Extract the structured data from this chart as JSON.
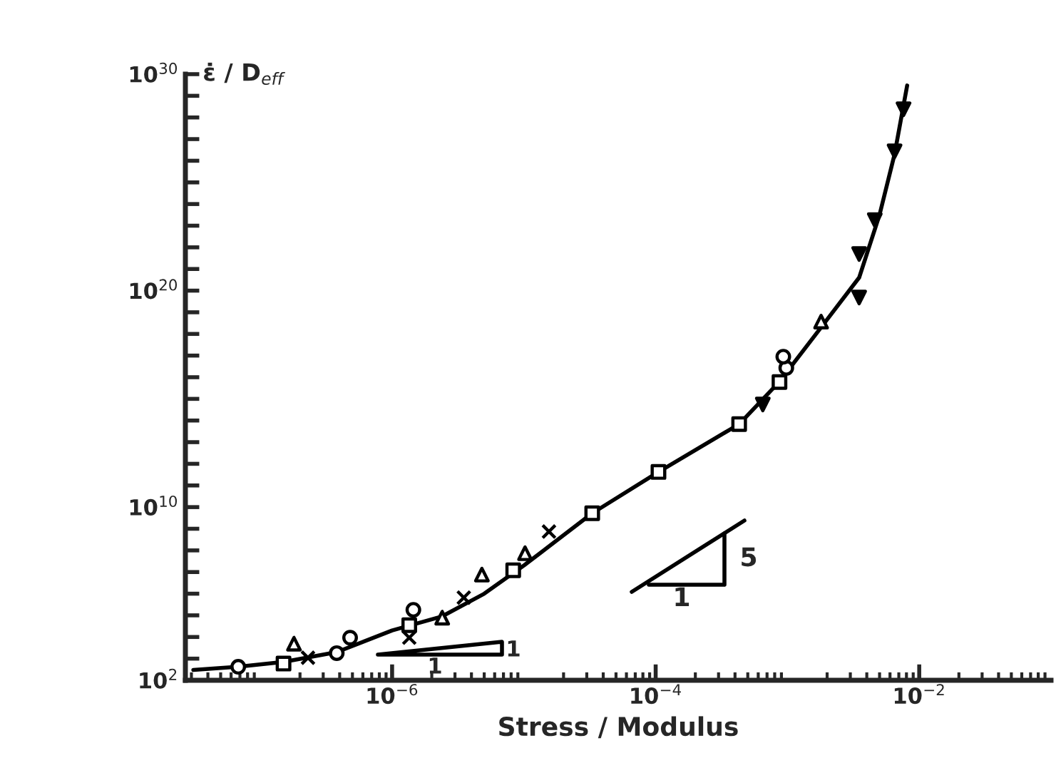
{
  "chart_data": {
    "type": "scatter",
    "xlabel": "Stress / Modulus",
    "ylabel": "ε̇ / D$_{eff}$",
    "log": "xy",
    "grid": false,
    "legend": false,
    "xlim": [
      2.7e-08,
      0.1
    ],
    "ylim": [
      100.0,
      1e+30
    ],
    "xticks": [
      {
        "value": 1e-06,
        "label": "10$^{−6}$"
      },
      {
        "value": 0.0001,
        "label": "10$^{−4}$"
      },
      {
        "value": 0.01,
        "label": "10$^{−2}$"
      }
    ],
    "yticks": [
      {
        "value": 100.0,
        "label": "10$^{2}$"
      },
      {
        "value": 1000.0,
        "label": null
      },
      {
        "value": 10000.0,
        "label": null
      },
      {
        "value": 100000.0,
        "label": null
      },
      {
        "value": 1000000.0,
        "label": null
      },
      {
        "value": 10000000.0,
        "label": null
      },
      {
        "value": 100000000.0,
        "label": null
      },
      {
        "value": 1000000000.0,
        "label": null
      },
      {
        "value": 10000000000.0,
        "label": "10$^{10}$"
      },
      {
        "value": 100000000000.0,
        "label": null
      },
      {
        "value": 1000000000000.0,
        "label": null
      },
      {
        "value": 10000000000000.0,
        "label": null
      },
      {
        "value": 100000000000000.0,
        "label": null
      },
      {
        "value": 1000000000000000.0,
        "label": null
      },
      {
        "value": 1e+16,
        "label": null
      },
      {
        "value": 1e+17,
        "label": null
      },
      {
        "value": 1e+18,
        "label": null
      },
      {
        "value": 1e+19,
        "label": null
      },
      {
        "value": 1e+20,
        "label": "10$^{20}$"
      },
      {
        "value": 1e+21,
        "label": null
      },
      {
        "value": 1e+22,
        "label": null
      },
      {
        "value": 1e+23,
        "label": null
      },
      {
        "value": 1e+24,
        "label": null
      },
      {
        "value": 1e+25,
        "label": null
      },
      {
        "value": 1e+26,
        "label": null
      },
      {
        "value": 1e+27,
        "label": null
      },
      {
        "value": 1e+28,
        "label": null
      },
      {
        "value": 1e+29,
        "label": null
      },
      {
        "value": 1e+30,
        "label": "10$^{30}$"
      }
    ],
    "annotations": [
      "1",
      "1",
      "1",
      "5"
    ],
    "series": [
      {
        "type": "line",
        "color": "#000000",
        "marker": "none",
        "line_style": "solid",
        "x": [
          3.1e-08,
          6.8e-08,
          1.5e-07,
          3.8e-07,
          1e-06,
          2.4e-06,
          5e-06,
          1e-05,
          3.3e-05,
          0.000105,
          0.00043,
          0.00087,
          0.0018,
          0.0035,
          0.005,
          0.0065,
          0.0081
        ],
        "values": [
          300.0,
          420.0,
          700.0,
          2000.0,
          20000.0,
          90000.0,
          1000000.0,
          20000000.0,
          5200000000.0,
          420000000000.0,
          68000000000000.0,
          6300000000000000.0,
          2e+18,
          4e+20,
          3.2e+23,
          2e+26,
          3e+29
        ]
      },
      {
        "color": "#000000",
        "marker": "square",
        "x": [
          1.5e-07,
          1.35e-06,
          8.3e-06,
          3.3e-05,
          0.000105,
          0.00043,
          0.00087
        ],
        "values": [
          590.0,
          35000.0,
          12000000.0,
          5200000000.0,
          420000000000.0,
          68000000000000.0,
          6000000000000000.0
        ]
      },
      {
        "color": "#000000",
        "marker": "circle",
        "x": [
          6.8e-08,
          3.8e-07,
          4.8e-07,
          1.45e-06,
          0.00098,
          0.00093
        ],
        "values": [
          420.0,
          1800.0,
          9300.0,
          180000.0,
          2.7e+16,
          8.9e+16
        ]
      },
      {
        "color": "#000000",
        "marker": "cross",
        "x": [
          2.3e-07,
          1.35e-06,
          3.5e-06,
          1.55e-05
        ],
        "values": [
          1100.0,
          9300.0,
          660000.0,
          740000000.0
        ]
      },
      {
        "color": "#000000",
        "marker": "triangle",
        "x": [
          1.8e-07,
          2.4e-06,
          4.8e-06,
          1.02e-05,
          0.0018
        ],
        "values": [
          4900.0,
          78000.0,
          7600000.0,
          74000000.0,
          3.7e+18
        ]
      },
      {
        "color": "#000000",
        "marker": "triangle_down",
        "x": [
          0.00065,
          0.0035,
          0.0035,
          0.0046,
          0.0065,
          0.0076
        ],
        "values": [
          550000000000000.0,
          4.8e+19,
          4.9e+21,
          1.8e+23,
          2.7e+26,
          2.4e+28
        ]
      }
    ]
  }
}
